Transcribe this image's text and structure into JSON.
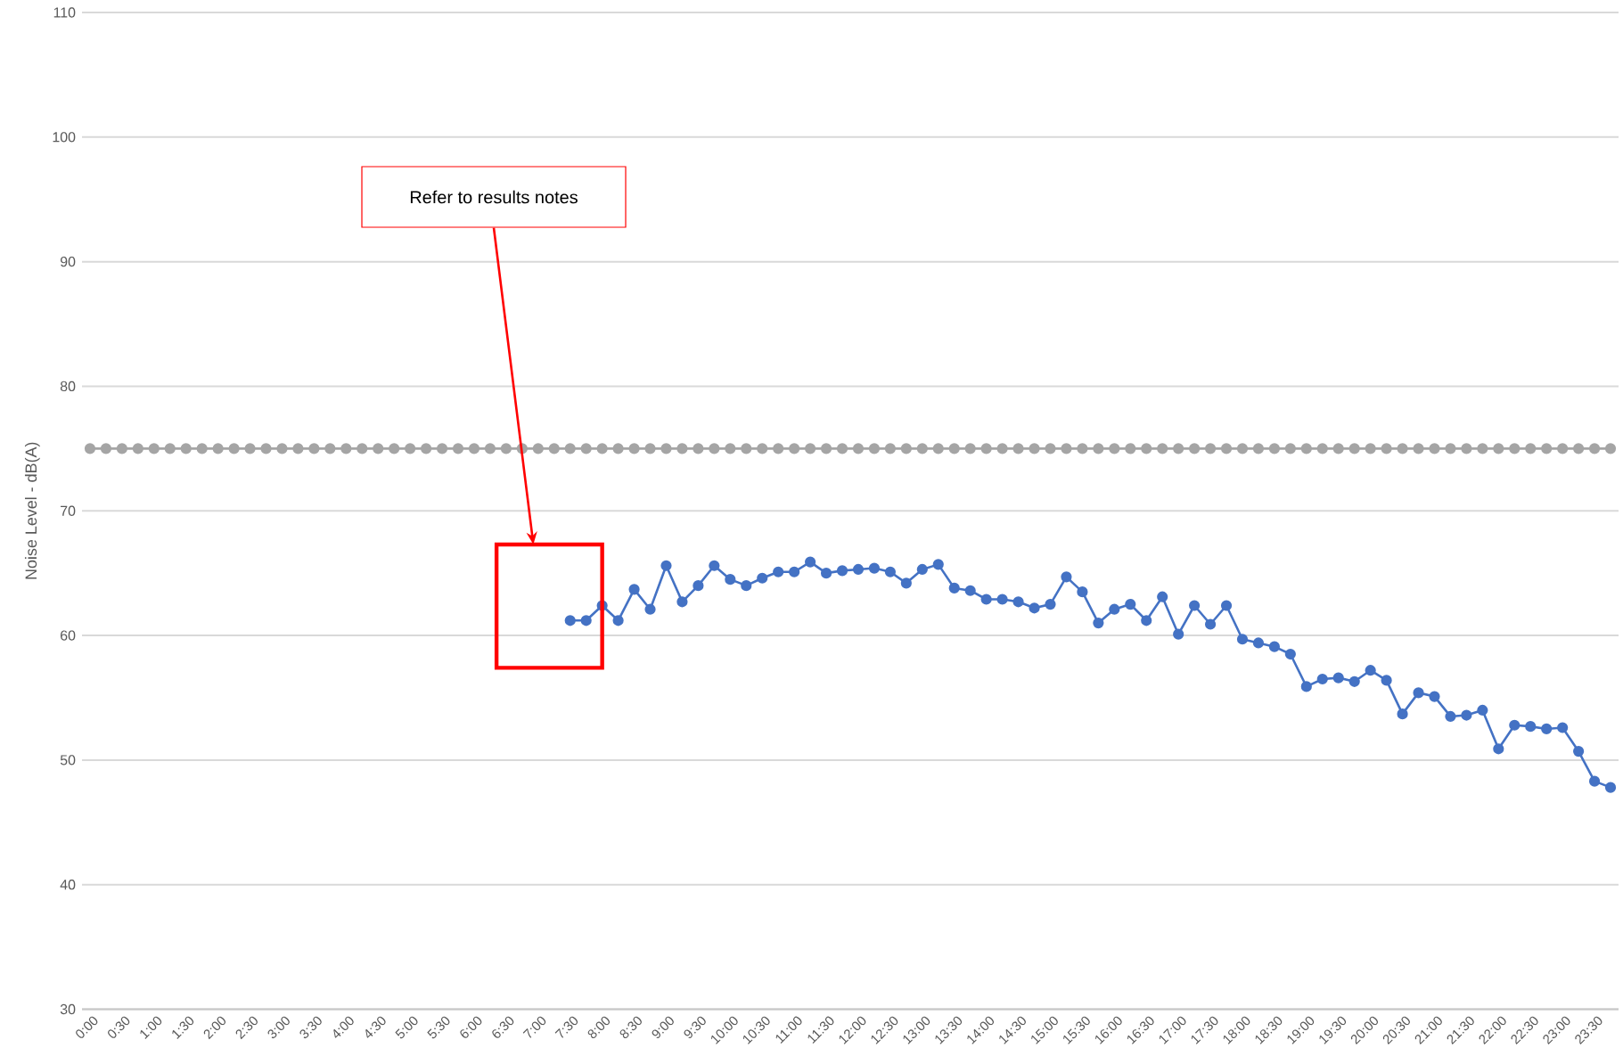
{
  "chart_data": {
    "type": "line",
    "ylabel": "Noise Level - dB(A)",
    "categories": [
      "0:00",
      null,
      "0:30",
      null,
      "1:00",
      null,
      "1:30",
      null,
      "2:00",
      null,
      "2:30",
      null,
      "3:00",
      null,
      "3:30",
      null,
      "4:00",
      null,
      "4:30",
      null,
      "5:00",
      null,
      "5:30",
      null,
      "6:00",
      null,
      "6:30",
      null,
      "7:00",
      null,
      "7:30",
      null,
      "8:00",
      null,
      "8:30",
      null,
      "9:00",
      null,
      "9:30",
      null,
      "10:00",
      null,
      "10:30",
      null,
      "11:00",
      null,
      "11:30",
      null,
      "12:00",
      null,
      "12:30",
      null,
      "13:00",
      null,
      "13:30",
      null,
      "14:00",
      null,
      "14:30",
      null,
      "15:00",
      null,
      "15:30",
      null,
      "16:00",
      null,
      "16:30",
      null,
      "17:00",
      null,
      "17:30",
      null,
      "18:00",
      null,
      "18:30",
      null,
      "19:00",
      null,
      "19:30",
      null,
      "20:00",
      null,
      "20:30",
      null,
      "21:00",
      null,
      "21:30",
      null,
      "22:00",
      null,
      "22:30",
      null,
      "23:00",
      null,
      "23:30",
      null
    ],
    "series": [
      {
        "color": "#a5a5a5",
        "values": [
          75,
          75,
          75,
          75,
          75,
          75,
          75,
          75,
          75,
          75,
          75,
          75,
          75,
          75,
          75,
          75,
          75,
          75,
          75,
          75,
          75,
          75,
          75,
          75,
          75,
          75,
          75,
          75,
          75,
          75,
          75,
          75,
          75,
          75,
          75,
          75,
          75,
          75,
          75,
          75,
          75,
          75,
          75,
          75,
          75,
          75,
          75,
          75,
          75,
          75,
          75,
          75,
          75,
          75,
          75,
          75,
          75,
          75,
          75,
          75,
          75,
          75,
          75,
          75,
          75,
          75,
          75,
          75,
          75,
          75,
          75,
          75,
          75,
          75,
          75,
          75,
          75,
          75,
          75,
          75,
          75,
          75,
          75,
          75,
          75,
          75,
          75,
          75,
          75,
          75,
          75,
          75,
          75,
          75,
          75,
          75
        ]
      },
      {
        "color": "#4472c4",
        "values": [
          null,
          null,
          null,
          null,
          null,
          null,
          null,
          null,
          null,
          null,
          null,
          null,
          null,
          null,
          null,
          null,
          null,
          null,
          null,
          null,
          null,
          null,
          null,
          null,
          null,
          null,
          null,
          null,
          null,
          null,
          61.2,
          61.2,
          62.4,
          61.2,
          63.7,
          62.1,
          65.6,
          62.7,
          64.0,
          65.6,
          64.5,
          64.0,
          64.6,
          65.1,
          65.1,
          65.9,
          65.0,
          65.2,
          65.3,
          65.4,
          65.1,
          64.2,
          65.3,
          65.7,
          63.8,
          63.6,
          62.9,
          62.9,
          62.7,
          62.2,
          62.5,
          64.7,
          63.5,
          61.0,
          62.1,
          62.5,
          61.2,
          63.1,
          60.1,
          62.4,
          60.9,
          62.4,
          59.7,
          59.4,
          59.1,
          58.5,
          55.9,
          56.5,
          56.6,
          56.3,
          57.2,
          56.4,
          53.7,
          55.4,
          55.1,
          53.5,
          53.6,
          54.0,
          50.9,
          52.8,
          52.7,
          52.5,
          52.6,
          50.7,
          48.3,
          47.8
        ]
      }
    ],
    "ylim": [
      30,
      110
    ],
    "yticks": [
      30,
      40,
      50,
      60,
      70,
      80,
      90,
      100,
      110
    ],
    "grid": "y",
    "marker": "circle",
    "annotations": [
      "Refer to results notes"
    ]
  }
}
